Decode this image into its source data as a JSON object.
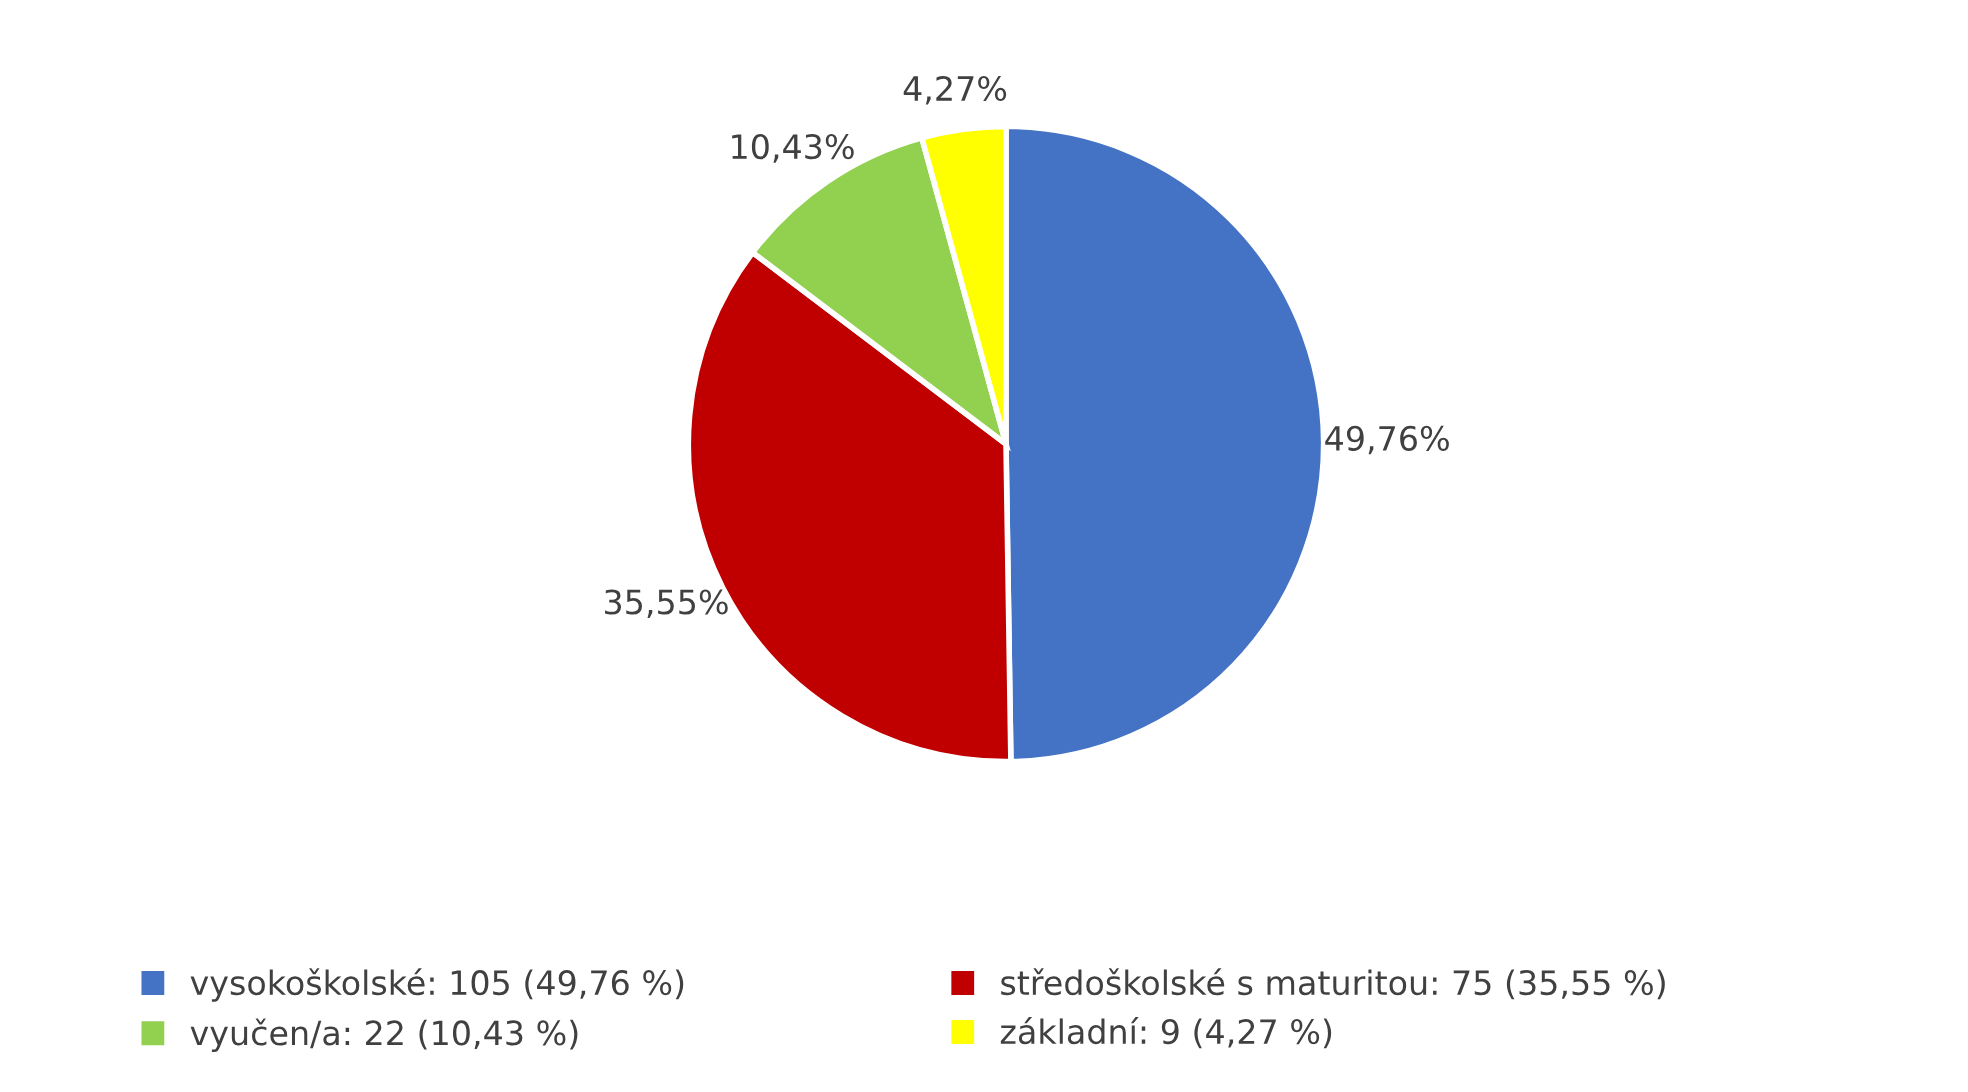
{
  "chart_data": {
    "type": "pie",
    "categories": [
      "vysokoškolské: 105 (49,76 %)",
      "středoškolské s maturitou: 75 (35,55 %)",
      "vyučen/a: 22 (10,43 %)",
      "základní: 9 (4,27 %)"
    ],
    "values": [
      49.76,
      35.55,
      10.43,
      4.27
    ],
    "colors": [
      "#4472c4",
      "#c00000",
      "#92d050",
      "#ffff00"
    ],
    "value_labels": [
      "49,76%",
      "35,55%",
      "10,43%",
      "4,27%"
    ],
    "legend": "bottom"
  }
}
